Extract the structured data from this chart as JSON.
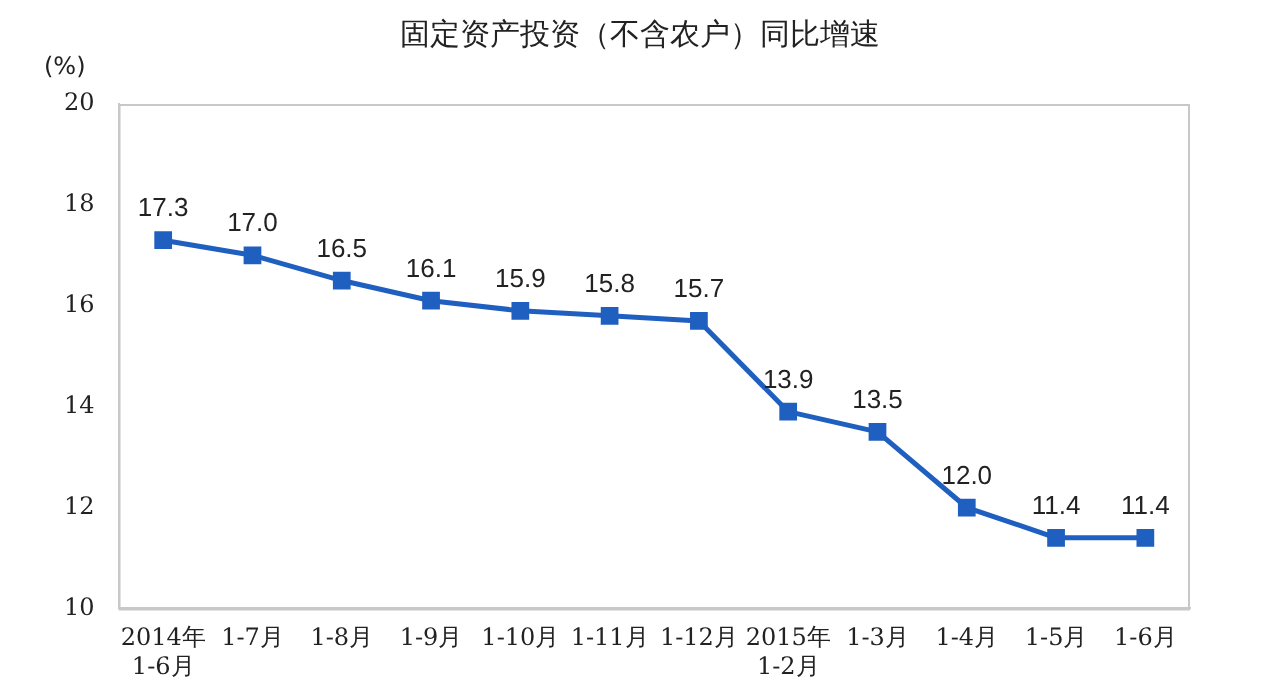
{
  "chart_data": {
    "type": "line",
    "title": "固定资产投资（不含农户）同比增速",
    "ylabel": "(%)",
    "categories": [
      "2014年\n1-6月",
      "1-7月",
      "1-8月",
      "1-9月",
      "1-10月",
      "1-11月",
      "1-12月",
      "2015年\n1-2月",
      "1-3月",
      "1-4月",
      "1-5月",
      "1-6月"
    ],
    "series": [
      {
        "color": "#1f5fbf",
        "values": [
          17.3,
          17.0,
          16.5,
          16.1,
          15.9,
          15.8,
          15.7,
          13.9,
          13.5,
          12.0,
          11.4,
          11.4
        ],
        "value_labels": [
          "17.3",
          "17.0",
          "16.5",
          "16.1",
          "15.9",
          "15.8",
          "15.7",
          "13.9",
          "13.5",
          "12.0",
          "11.4",
          "11.4"
        ]
      }
    ],
    "ylim": [
      10,
      20
    ],
    "yticks": [
      10,
      12,
      14,
      16,
      18,
      20
    ],
    "marker": "square",
    "line_style": "solid",
    "legend": false,
    "grid": false
  }
}
